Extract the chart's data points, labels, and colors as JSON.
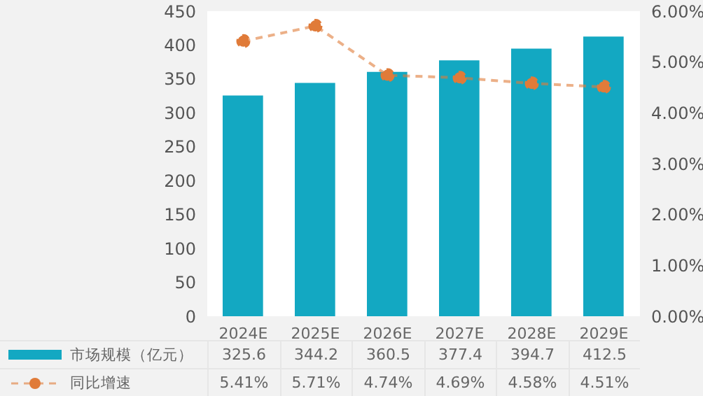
{
  "chart_data": {
    "type": "bar",
    "categories": [
      "2024E",
      "2025E",
      "2026E",
      "2027E",
      "2028E",
      "2029E"
    ],
    "series": [
      {
        "name": "市场规模（亿元）",
        "color": "#13a8c2",
        "values": [
          325.6,
          344.2,
          360.5,
          377.4,
          394.7,
          412.5
        ],
        "value_labels": [
          "325.6",
          "344.2",
          "360.5",
          "377.4",
          "394.7",
          "412.5"
        ]
      },
      {
        "name": "同比增速",
        "type": "line",
        "axis": "y2",
        "color": "#e07b39",
        "line_style": "dashed",
        "marker": "circle",
        "values": [
          5.41,
          5.71,
          4.74,
          4.69,
          4.58,
          4.51
        ],
        "value_labels": [
          "5.41%",
          "5.71%",
          "4.74%",
          "4.69%",
          "4.58%",
          "4.51%"
        ]
      }
    ],
    "ylim": [
      0,
      450
    ],
    "yticks": [
      0,
      50,
      100,
      150,
      200,
      250,
      300,
      350,
      400,
      450
    ],
    "y2lim": [
      0,
      6
    ],
    "y2ticks": [
      {
        "value": 0,
        "label": "0.00%"
      },
      {
        "value": 1,
        "label": "1.00%"
      },
      {
        "value": 2,
        "label": "2.00%"
      },
      {
        "value": 3,
        "label": "3.00%"
      },
      {
        "value": 4,
        "label": "4.00%"
      },
      {
        "value": 5,
        "label": "5.00%"
      },
      {
        "value": 6,
        "label": "6.00%"
      }
    ],
    "legend": "bottom",
    "grid": false
  }
}
